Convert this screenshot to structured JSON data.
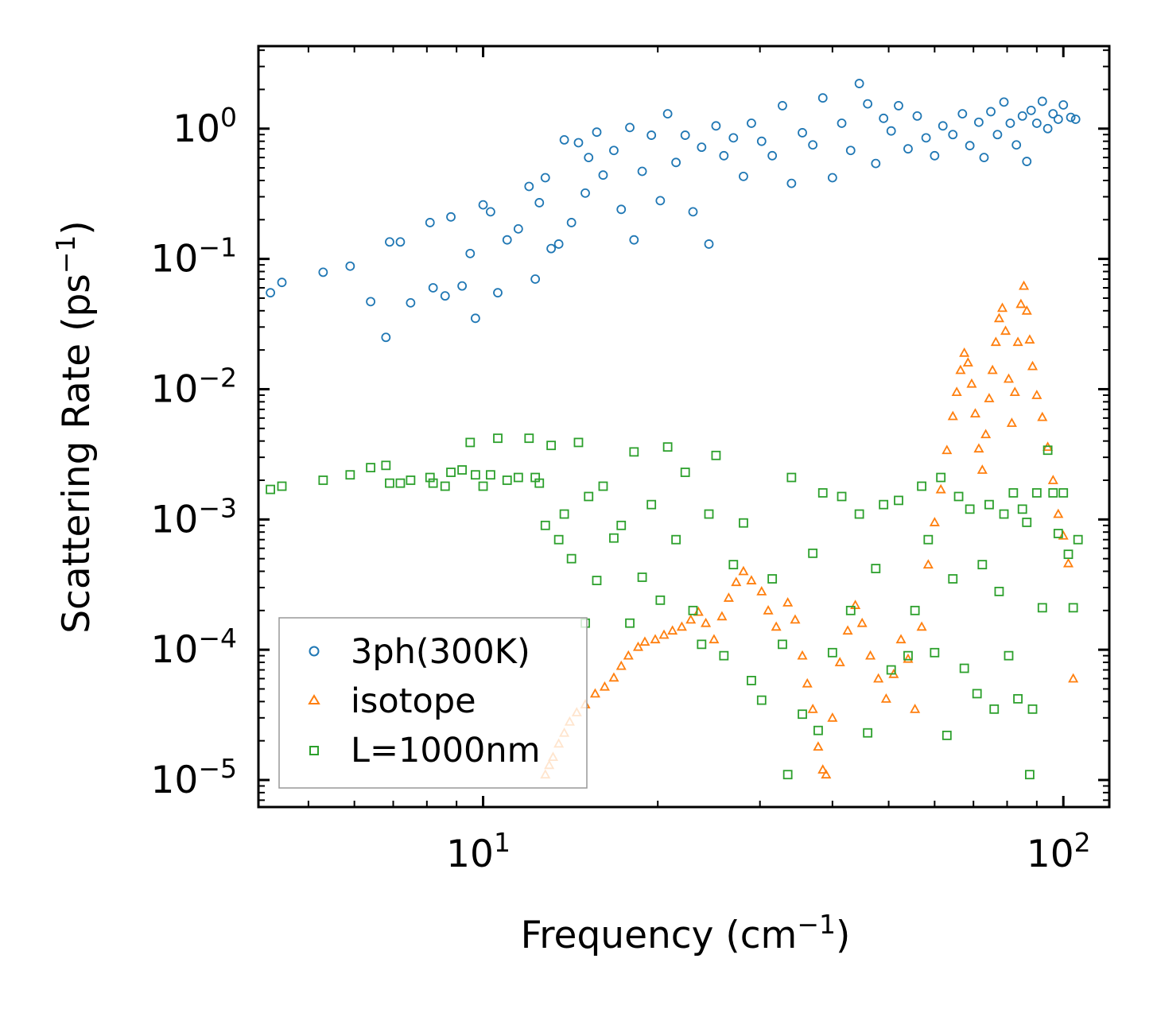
{
  "chart_data": {
    "type": "scatter",
    "title": "",
    "xlabel": "Frequency (cm",
    "xlabel_sup": "−1",
    "xlabel_end": ")",
    "ylabel": "Scattering Rate (ps",
    "ylabel_sup": "−1",
    "ylabel_end": ")",
    "xscale": "log",
    "yscale": "log",
    "xlim": [
      4.1,
      120
    ],
    "ylim": [
      6.2e-06,
      4.3
    ],
    "x_ticks": [
      {
        "value": 10,
        "base": "10",
        "exp": "1"
      },
      {
        "value": 100,
        "base": "10",
        "exp": "2"
      }
    ],
    "y_ticks": [
      {
        "value": 1,
        "base": "10",
        "exp": "0"
      },
      {
        "value": 0.1,
        "base": "10",
        "exp": "−1"
      },
      {
        "value": 0.01,
        "base": "10",
        "exp": "−2"
      },
      {
        "value": 0.001,
        "base": "10",
        "exp": "−3"
      },
      {
        "value": 0.0001,
        "base": "10",
        "exp": "−4"
      },
      {
        "value": 1e-05,
        "base": "10",
        "exp": "−5"
      }
    ],
    "legend_position": "bottom-left",
    "series": [
      {
        "name": "3ph(300K)",
        "marker": "circle",
        "color": "#1f77b4",
        "points": [
          [
            4.3,
            0.055
          ],
          [
            4.5,
            0.066
          ],
          [
            5.3,
            0.079
          ],
          [
            5.9,
            0.088
          ],
          [
            6.4,
            0.047
          ],
          [
            6.8,
            0.025
          ],
          [
            6.9,
            0.135
          ],
          [
            7.2,
            0.135
          ],
          [
            7.5,
            0.046
          ],
          [
            8.1,
            0.19
          ],
          [
            8.2,
            0.06
          ],
          [
            8.6,
            0.052
          ],
          [
            8.8,
            0.21
          ],
          [
            9.2,
            0.062
          ],
          [
            9.5,
            0.11
          ],
          [
            9.7,
            0.035
          ],
          [
            10.0,
            0.26
          ],
          [
            10.3,
            0.23
          ],
          [
            10.6,
            0.055
          ],
          [
            11.0,
            0.14
          ],
          [
            11.5,
            0.17
          ],
          [
            12.0,
            0.36
          ],
          [
            12.3,
            0.07
          ],
          [
            12.5,
            0.27
          ],
          [
            12.8,
            0.42
          ],
          [
            13.1,
            0.12
          ],
          [
            13.5,
            0.13
          ],
          [
            13.8,
            0.82
          ],
          [
            14.2,
            0.19
          ],
          [
            14.6,
            0.78
          ],
          [
            15.0,
            0.32
          ],
          [
            15.2,
            0.6
          ],
          [
            15.7,
            0.94
          ],
          [
            16.1,
            0.44
          ],
          [
            16.8,
            0.68
          ],
          [
            17.3,
            0.24
          ],
          [
            17.9,
            1.02
          ],
          [
            18.2,
            0.14
          ],
          [
            18.8,
            0.47
          ],
          [
            19.5,
            0.89
          ],
          [
            20.2,
            0.28
          ],
          [
            20.8,
            1.3
          ],
          [
            21.5,
            0.55
          ],
          [
            22.3,
            0.89
          ],
          [
            23.0,
            0.23
          ],
          [
            23.8,
            0.72
          ],
          [
            24.5,
            0.13
          ],
          [
            25.2,
            1.05
          ],
          [
            26.0,
            0.62
          ],
          [
            27.0,
            0.85
          ],
          [
            28.1,
            0.43
          ],
          [
            29.0,
            1.1
          ],
          [
            30.2,
            0.8
          ],
          [
            31.5,
            0.62
          ],
          [
            32.8,
            1.5
          ],
          [
            34.0,
            0.38
          ],
          [
            35.5,
            0.93
          ],
          [
            37.0,
            0.75
          ],
          [
            38.5,
            1.72
          ],
          [
            40.0,
            0.42
          ],
          [
            41.5,
            1.1
          ],
          [
            43.0,
            0.68
          ],
          [
            44.5,
            2.22
          ],
          [
            46.0,
            1.55
          ],
          [
            47.5,
            0.54
          ],
          [
            49.0,
            1.2
          ],
          [
            50.5,
            0.96
          ],
          [
            52.0,
            1.5
          ],
          [
            54.0,
            0.7
          ],
          [
            56.0,
            1.25
          ],
          [
            58.0,
            0.85
          ],
          [
            60.0,
            0.62
          ],
          [
            62.0,
            1.05
          ],
          [
            64.5,
            0.9
          ],
          [
            67.0,
            1.3
          ],
          [
            69.0,
            0.74
          ],
          [
            71.5,
            1.12
          ],
          [
            73.0,
            0.6
          ],
          [
            75.0,
            1.35
          ],
          [
            77.0,
            0.9
          ],
          [
            79.0,
            1.6
          ],
          [
            81.0,
            1.1
          ],
          [
            83.0,
            0.75
          ],
          [
            85.0,
            1.25
          ],
          [
            86.5,
            0.56
          ],
          [
            88.0,
            1.38
          ],
          [
            90.0,
            1.1
          ],
          [
            92.0,
            1.62
          ],
          [
            94.0,
            1.0
          ],
          [
            96.0,
            1.3
          ],
          [
            98.0,
            1.18
          ],
          [
            100.0,
            1.52
          ],
          [
            103.0,
            1.22
          ],
          [
            105.0,
            1.18
          ]
        ]
      },
      {
        "name": "isotope",
        "marker": "triangle",
        "color": "#ff7f0e",
        "points": [
          [
            12.8,
            1.1e-05
          ],
          [
            13.0,
            1.3e-05
          ],
          [
            13.2,
            1.5e-05
          ],
          [
            13.5,
            1.9e-05
          ],
          [
            13.8,
            2.3e-05
          ],
          [
            14.1,
            2.8e-05
          ],
          [
            14.5,
            3.3e-05
          ],
          [
            15.0,
            3.8e-05
          ],
          [
            15.6,
            4.6e-05
          ],
          [
            16.2,
            5.2e-05
          ],
          [
            16.8,
            6.1e-05
          ],
          [
            17.3,
            7.5e-05
          ],
          [
            17.8,
            9e-05
          ],
          [
            18.5,
            0.000105
          ],
          [
            19.0,
            0.000115
          ],
          [
            19.8,
            0.00012
          ],
          [
            20.5,
            0.00013
          ],
          [
            21.2,
            0.00014
          ],
          [
            22.0,
            0.00015
          ],
          [
            22.8,
            0.00017
          ],
          [
            23.5,
            0.000195
          ],
          [
            24.2,
            0.00016
          ],
          [
            25.0,
            0.00012
          ],
          [
            25.8,
            0.00018
          ],
          [
            26.5,
            0.00025
          ],
          [
            27.3,
            0.00033
          ],
          [
            28.1,
            0.0004
          ],
          [
            29.0,
            0.00034
          ],
          [
            30.2,
            0.00028
          ],
          [
            31.0,
            0.0002
          ],
          [
            32.0,
            0.00015
          ],
          [
            33.5,
            0.00023
          ],
          [
            34.5,
            0.00017
          ],
          [
            35.5,
            9e-05
          ],
          [
            36.2,
            5.5e-05
          ],
          [
            37.0,
            3.5e-05
          ],
          [
            37.8,
            1.8e-05
          ],
          [
            38.5,
            1.2e-05
          ],
          [
            39.0,
            1.1e-05
          ],
          [
            40.0,
            3e-05
          ],
          [
            41.2,
            8e-05
          ],
          [
            42.5,
            0.00014
          ],
          [
            43.8,
            0.00022
          ],
          [
            45.0,
            0.00016
          ],
          [
            46.5,
            9e-05
          ],
          [
            48.0,
            6e-05
          ],
          [
            49.5,
            4.2e-05
          ],
          [
            51.0,
            6.5e-05
          ],
          [
            52.5,
            0.00012
          ],
          [
            54.0,
            8.5e-05
          ],
          [
            55.5,
            3.5e-05
          ],
          [
            57.0,
            0.00015
          ],
          [
            58.5,
            0.00045
          ],
          [
            60.0,
            0.00095
          ],
          [
            61.5,
            0.0017
          ],
          [
            63.0,
            0.0034
          ],
          [
            64.5,
            0.0062
          ],
          [
            65.5,
            0.0095
          ],
          [
            66.5,
            0.014
          ],
          [
            67.5,
            0.019
          ],
          [
            68.5,
            0.016
          ],
          [
            69.5,
            0.011
          ],
          [
            70.5,
            0.0065
          ],
          [
            71.5,
            0.0035
          ],
          [
            72.5,
            0.0024
          ],
          [
            73.5,
            0.0045
          ],
          [
            74.5,
            0.0085
          ],
          [
            75.5,
            0.014
          ],
          [
            76.5,
            0.023
          ],
          [
            77.5,
            0.035
          ],
          [
            78.5,
            0.042
          ],
          [
            79.5,
            0.028
          ],
          [
            80.5,
            0.012
          ],
          [
            81.5,
            0.0055
          ],
          [
            82.5,
            0.0095
          ],
          [
            83.5,
            0.023
          ],
          [
            84.5,
            0.045
          ],
          [
            85.5,
            0.062
          ],
          [
            86.5,
            0.04
          ],
          [
            87.5,
            0.024
          ],
          [
            88.5,
            0.015
          ],
          [
            90.0,
            0.009
          ],
          [
            92.0,
            0.0061
          ],
          [
            94.0,
            0.0036
          ],
          [
            96.0,
            0.002
          ],
          [
            98.0,
            0.0011
          ],
          [
            100.0,
            0.00075
          ],
          [
            102.0,
            0.00046
          ],
          [
            104.0,
            6e-05
          ]
        ]
      },
      {
        "name": "L=1000nm",
        "marker": "square",
        "color": "#2ca02c",
        "points": [
          [
            4.3,
            0.0017
          ],
          [
            4.5,
            0.0018
          ],
          [
            5.3,
            0.002
          ],
          [
            5.9,
            0.0022
          ],
          [
            6.4,
            0.0025
          ],
          [
            6.8,
            0.0026
          ],
          [
            6.9,
            0.0019
          ],
          [
            7.2,
            0.0019
          ],
          [
            7.5,
            0.002
          ],
          [
            8.1,
            0.0021
          ],
          [
            8.2,
            0.0019
          ],
          [
            8.6,
            0.0018
          ],
          [
            8.8,
            0.0023
          ],
          [
            9.2,
            0.0024
          ],
          [
            9.5,
            0.0039
          ],
          [
            9.7,
            0.0022
          ],
          [
            10.0,
            0.0018
          ],
          [
            10.3,
            0.0022
          ],
          [
            10.6,
            0.0042
          ],
          [
            11.0,
            0.002
          ],
          [
            11.5,
            0.0021
          ],
          [
            12.0,
            0.0042
          ],
          [
            12.3,
            0.0021
          ],
          [
            12.5,
            0.0019
          ],
          [
            12.8,
            0.0009
          ],
          [
            13.1,
            0.0037
          ],
          [
            13.5,
            0.0007
          ],
          [
            13.8,
            0.0011
          ],
          [
            14.2,
            0.0005
          ],
          [
            14.6,
            0.0039
          ],
          [
            15.0,
            0.00016
          ],
          [
            15.2,
            0.0015
          ],
          [
            15.7,
            0.00034
          ],
          [
            16.1,
            0.0018
          ],
          [
            16.8,
            0.00072
          ],
          [
            17.3,
            0.0009
          ],
          [
            17.9,
            0.00016
          ],
          [
            18.2,
            0.0033
          ],
          [
            18.8,
            0.00036
          ],
          [
            19.5,
            0.0013
          ],
          [
            20.2,
            0.00024
          ],
          [
            20.8,
            0.0036
          ],
          [
            21.5,
            0.0007
          ],
          [
            22.3,
            0.0023
          ],
          [
            23.0,
            0.0002
          ],
          [
            23.8,
            0.00011
          ],
          [
            24.5,
            0.0011
          ],
          [
            25.2,
            0.0031
          ],
          [
            26.0,
            9e-05
          ],
          [
            27.0,
            0.00045
          ],
          [
            28.1,
            0.00094
          ],
          [
            29.0,
            5.8e-05
          ],
          [
            30.2,
            4.1e-05
          ],
          [
            31.5,
            0.00035
          ],
          [
            32.8,
            0.00011
          ],
          [
            33.5,
            1.1e-05
          ],
          [
            34.0,
            0.0021
          ],
          [
            35.5,
            3.2e-05
          ],
          [
            37.0,
            0.00055
          ],
          [
            37.8,
            2.4e-05
          ],
          [
            38.5,
            0.0016
          ],
          [
            40.0,
            9.5e-05
          ],
          [
            41.5,
            0.0015
          ],
          [
            43.0,
            0.0002
          ],
          [
            44.5,
            0.0011
          ],
          [
            46.0,
            2.3e-05
          ],
          [
            47.5,
            0.00042
          ],
          [
            49.0,
            0.0013
          ],
          [
            50.5,
            7e-05
          ],
          [
            52.0,
            0.0014
          ],
          [
            54.0,
            9e-05
          ],
          [
            55.5,
            0.0002
          ],
          [
            57.0,
            0.0018
          ],
          [
            58.5,
            0.0007
          ],
          [
            60.0,
            9.5e-05
          ],
          [
            61.5,
            0.0021
          ],
          [
            63.0,
            2.2e-05
          ],
          [
            64.5,
            0.00035
          ],
          [
            66.0,
            0.0015
          ],
          [
            67.5,
            7.2e-05
          ],
          [
            69.0,
            0.0012
          ],
          [
            71.0,
            4.6e-05
          ],
          [
            72.5,
            0.00045
          ],
          [
            74.5,
            0.0013
          ],
          [
            76.0,
            3.5e-05
          ],
          [
            77.5,
            0.00028
          ],
          [
            79.0,
            0.0011
          ],
          [
            80.5,
            9e-05
          ],
          [
            82.0,
            0.0016
          ],
          [
            83.5,
            4.2e-05
          ],
          [
            85.0,
            0.0012
          ],
          [
            86.5,
            0.00095
          ],
          [
            87.5,
            1.1e-05
          ],
          [
            88.5,
            3.5e-05
          ],
          [
            90.0,
            0.0016
          ],
          [
            92.0,
            0.00021
          ],
          [
            94.0,
            0.0034
          ],
          [
            96.0,
            0.0016
          ],
          [
            98.0,
            0.00078
          ],
          [
            100.0,
            0.0016
          ],
          [
            102.0,
            0.00054
          ],
          [
            104.0,
            0.00021
          ],
          [
            106.0,
            0.0007
          ]
        ]
      }
    ]
  }
}
